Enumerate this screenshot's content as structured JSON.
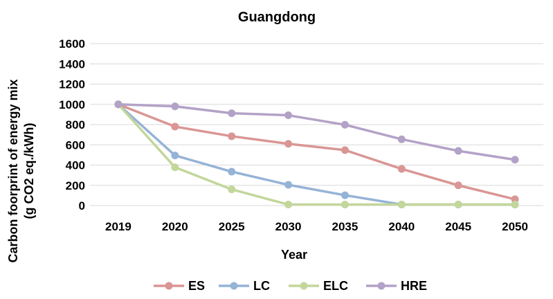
{
  "chart_data": {
    "type": "line",
    "title": "Guangdong",
    "xlabel": "Year",
    "ylabel_line1": "Carbon foorprint of energy mix",
    "ylabel_line2": "(g CO2 eq./kWh)",
    "categories": [
      "2019",
      "2020",
      "2025",
      "2030",
      "2035",
      "2040",
      "2045",
      "2050"
    ],
    "ylim": [
      0,
      1600
    ],
    "yticks": [
      0,
      200,
      400,
      600,
      800,
      1000,
      1200,
      1400,
      1600
    ],
    "grid": true,
    "legend_position": "bottom",
    "series": [
      {
        "name": "ES",
        "color": "#d99694",
        "values": [
          1000,
          780,
          685,
          610,
          548,
          362,
          200,
          62
        ]
      },
      {
        "name": "LC",
        "color": "#95b3d7",
        "values": [
          1000,
          495,
          335,
          205,
          102,
          10,
          10,
          10
        ]
      },
      {
        "name": "ELC",
        "color": "#c3d69b",
        "values": [
          1000,
          378,
          160,
          10,
          10,
          10,
          10,
          10
        ]
      },
      {
        "name": "HRE",
        "color": "#b3a2c7",
        "values": [
          1000,
          980,
          912,
          892,
          798,
          655,
          540,
          453
        ]
      }
    ]
  }
}
